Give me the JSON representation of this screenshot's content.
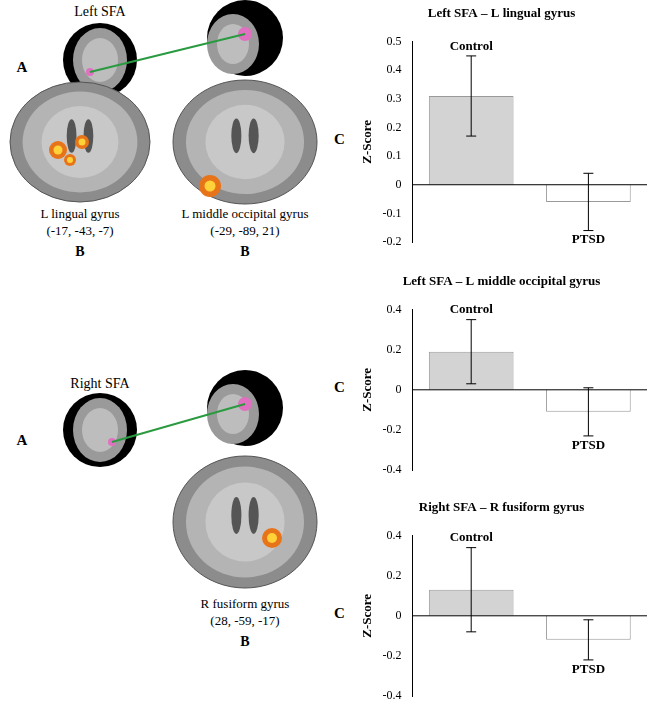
{
  "panels": [
    {
      "title": "Left SFA",
      "view_label": "A",
      "regions": [
        {
          "name": "L lingual gyrus",
          "coordinates": "(-17, -43, -7)",
          "label": "B"
        },
        {
          "name": "L middle occipital gyrus",
          "coordinates": "(-29, -89, 21)",
          "label": "B"
        }
      ]
    },
    {
      "title": "Right SFA",
      "view_label": "A",
      "regions": [
        {
          "name": "R fusiform gyrus",
          "coordinates": "(28, -59, -17)",
          "label": "B"
        }
      ]
    }
  ],
  "chart_data": [
    {
      "type": "bar",
      "title": "Left SFA – L lingual gyrus",
      "panel_label": "C",
      "y_label": "Z-Score",
      "categories": [
        "Control",
        "PTSD"
      ],
      "values": [
        0.31,
        -0.06
      ],
      "errors": [
        0.14,
        0.1
      ],
      "colors": [
        "#d3d3d3",
        "#ffffff"
      ],
      "ylim": [
        -0.2,
        0.5
      ],
      "yticks": [
        -0.2,
        -0.1,
        0,
        0.1,
        0.2,
        0.3,
        0.4,
        0.5
      ],
      "grid": false,
      "tick_labels": "y"
    },
    {
      "type": "bar",
      "title": "Left SFA – L middle occipital gyrus",
      "panel_label": "C",
      "y_label": "Z-Score",
      "categories": [
        "Control",
        "PTSD"
      ],
      "values": [
        0.19,
        -0.11
      ],
      "errors": [
        0.16,
        0.12
      ],
      "colors": [
        "#d3d3d3",
        "#ffffff"
      ],
      "ylim": [
        -0.4,
        0.4
      ],
      "yticks": [
        -0.4,
        -0.2,
        0,
        0.2,
        0.4
      ],
      "grid": false,
      "tick_labels": "y"
    },
    {
      "type": "bar",
      "title": "Right SFA – R fusiform gyrus",
      "panel_label": "C",
      "y_label": "Z-Score",
      "categories": [
        "Control",
        "PTSD"
      ],
      "values": [
        0.13,
        -0.12
      ],
      "errors": [
        0.21,
        0.1
      ],
      "colors": [
        "#d3d3d3",
        "#ffffff"
      ],
      "ylim": [
        -0.4,
        0.4
      ],
      "yticks": [
        -0.4,
        -0.2,
        0,
        0.2,
        0.4
      ],
      "grid": false,
      "tick_labels": "y"
    }
  ]
}
